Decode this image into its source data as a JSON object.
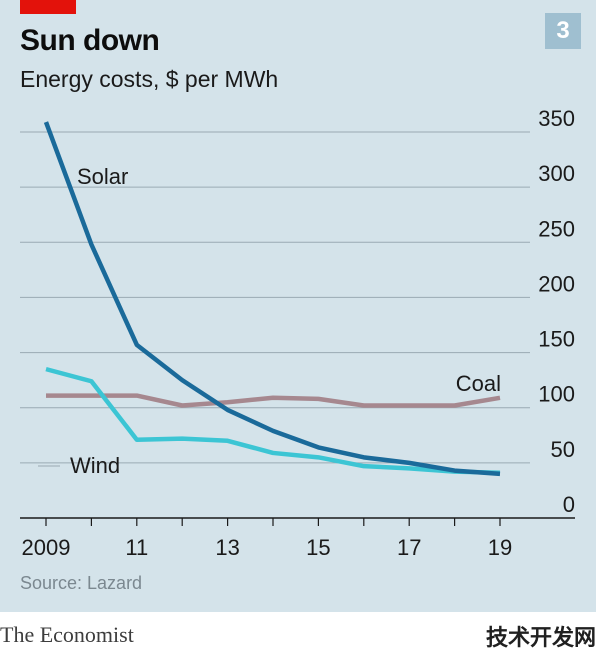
{
  "header": {
    "title": "Sun down",
    "subtitle": "Energy costs, $ per MWh",
    "badge": "3"
  },
  "footer": {
    "source": "Source: Lazard",
    "brand": "The Economist",
    "watermark": "技术开发网"
  },
  "colors": {
    "background": "#d4e3ea",
    "accent_red": "#e3120b",
    "solar": "#1a6a9a",
    "wind": "#3cc5d4",
    "coal": "#a6888f",
    "grid": "#9aaab3",
    "axis": "#1a1a1a"
  },
  "chart_data": {
    "type": "line",
    "title": "Sun down",
    "subtitle": "Energy costs, $ per MWh",
    "ylim": [
      0,
      350
    ],
    "y_ticks": [
      "0",
      "50",
      "100",
      "150",
      "200",
      "250",
      "300",
      "350"
    ],
    "y_tick_values": [
      0,
      50,
      100,
      150,
      200,
      250,
      300,
      350
    ],
    "y_axis_side": "right",
    "grid": true,
    "x": [
      2009,
      2010,
      2011,
      2012,
      2013,
      2014,
      2015,
      2016,
      2017,
      2018,
      2019
    ],
    "x_tick_labels": [
      "2009",
      "11",
      "13",
      "15",
      "17",
      "19"
    ],
    "x_tick_label_values": [
      2009,
      2011,
      2013,
      2015,
      2017,
      2019
    ],
    "series": [
      {
        "name": "Solar",
        "color": "#1a6a9a",
        "values": [
          359,
          248,
          157,
          125,
          98,
          79,
          64,
          55,
          50,
          43,
          40
        ]
      },
      {
        "name": "Wind",
        "color": "#3cc5d4",
        "values": [
          135,
          124,
          71,
          72,
          70,
          59,
          55,
          47,
          45,
          42,
          41
        ]
      },
      {
        "name": "Coal",
        "color": "#a6888f",
        "values": [
          111,
          111,
          111,
          102,
          105,
          109,
          108,
          102,
          102,
          102,
          109
        ]
      }
    ]
  }
}
